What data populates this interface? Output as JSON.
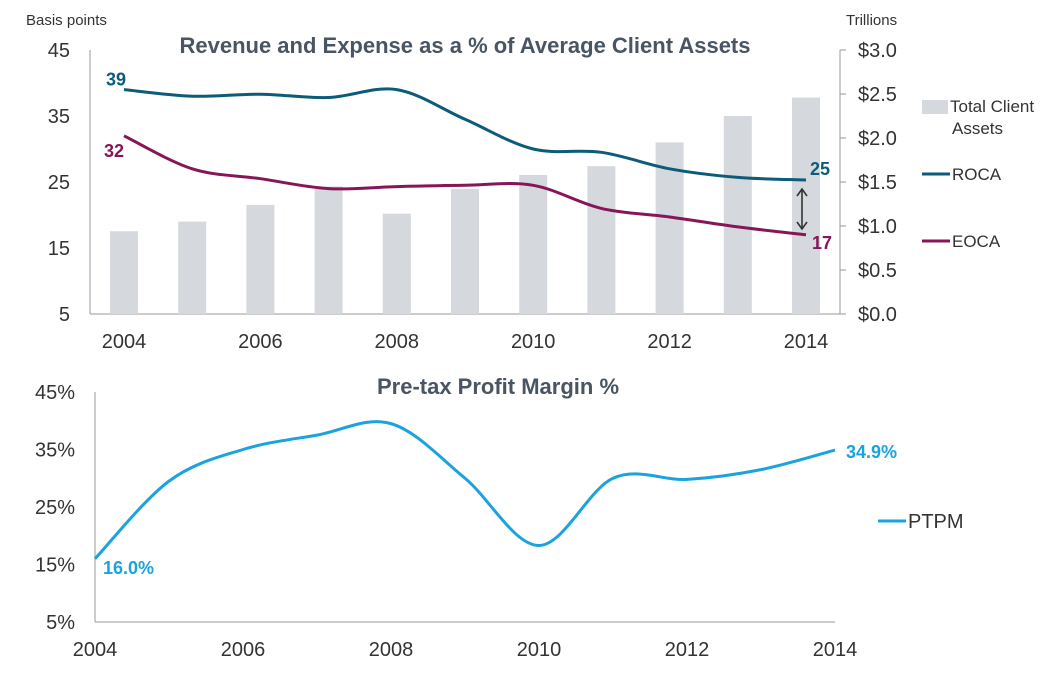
{
  "chart_data": [
    {
      "type": "bar+line",
      "title": "Revenue and Expense as a % of Average Client Assets",
      "ylabel_left": "Basis points",
      "ylabel_right": "Trillions",
      "ylim_left": [
        5,
        45
      ],
      "yticks_left": [
        5,
        15,
        25,
        35,
        45
      ],
      "ylim_right": [
        0,
        3.0
      ],
      "yticks_right": [
        "$0.0",
        "$0.5",
        "$1.0",
        "$1.5",
        "$2.0",
        "$2.5",
        "$3.0"
      ],
      "x": [
        2004,
        2005,
        2006,
        2007,
        2008,
        2009,
        2010,
        2011,
        2012,
        2013,
        2014
      ],
      "xticks": [
        "2004",
        "2006",
        "2008",
        "2010",
        "2012",
        "2014"
      ],
      "bars": {
        "name": "Total Client Assets",
        "axis": "right",
        "color": "#d5d8dc",
        "values": [
          0.94,
          1.05,
          1.24,
          1.45,
          1.14,
          1.42,
          1.58,
          1.68,
          1.95,
          2.25,
          2.46
        ]
      },
      "series": [
        {
          "name": "ROCA",
          "axis": "left",
          "color": "#0d5b7a",
          "values": [
            39,
            38,
            38.3,
            37.8,
            39,
            34.5,
            30,
            29.5,
            27,
            25.7,
            25.3
          ],
          "start_label": "39",
          "end_label": "25"
        },
        {
          "name": "EOCA",
          "axis": "left",
          "color": "#861657",
          "values": [
            32,
            27,
            25.5,
            24,
            24.3,
            24.5,
            24.5,
            21,
            19.7,
            18.2,
            17
          ],
          "start_label": "32",
          "end_label": "17"
        }
      ],
      "legend_placement": "right",
      "grid": false
    },
    {
      "type": "line",
      "title": "Pre-tax Profit Margin %",
      "ylim": [
        5,
        45
      ],
      "yticks": [
        "5%",
        "15%",
        "25%",
        "35%",
        "45%"
      ],
      "x": [
        2004,
        2005,
        2006,
        2007,
        2008,
        2009,
        2010,
        2011,
        2012,
        2013,
        2014
      ],
      "xticks": [
        "2004",
        "2006",
        "2008",
        "2010",
        "2012",
        "2014"
      ],
      "series": [
        {
          "name": "PTPM",
          "color": "#1aa3dc",
          "values": [
            16.0,
            29.5,
            35,
            37.5,
            39.5,
            30,
            18.3,
            30,
            29.8,
            31.5,
            34.9
          ],
          "start_label": "16.0%",
          "end_label": "34.9%"
        }
      ],
      "legend_placement": "right",
      "grid": false
    }
  ]
}
